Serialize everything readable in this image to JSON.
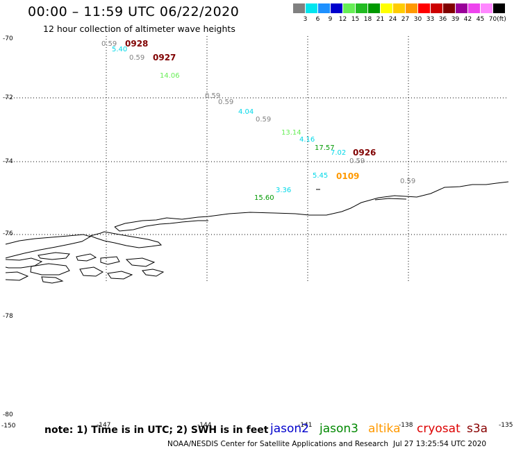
{
  "header": {
    "title": "00:00 – 11:59 UTC 06/22/2020",
    "subtitle": "12 hour collection of altimeter wave heights"
  },
  "legend": {
    "unit": "(ft)",
    "bins": [
      {
        "value": "3",
        "color": "#808080"
      },
      {
        "value": "6",
        "color": "#00e5ee"
      },
      {
        "value": "9",
        "color": "#1e90ff"
      },
      {
        "value": "12",
        "color": "#0000cd"
      },
      {
        "value": "15",
        "color": "#66ee55"
      },
      {
        "value": "18",
        "color": "#22bb22"
      },
      {
        "value": "21",
        "color": "#009900"
      },
      {
        "value": "24",
        "color": "#ffff00"
      },
      {
        "value": "27",
        "color": "#ffcc00"
      },
      {
        "value": "30",
        "color": "#ff9900"
      },
      {
        "value": "33",
        "color": "#ff0000"
      },
      {
        "value": "36",
        "color": "#cc0000"
      },
      {
        "value": "39",
        "color": "#800000"
      },
      {
        "value": "42",
        "color": "#990099"
      },
      {
        "value": "45",
        "color": "#ee44ee"
      },
      {
        "value": "70",
        "color": "#ff88ff"
      },
      {
        "value": "",
        "color": "#000000"
      }
    ]
  },
  "axes": {
    "lat_labels": [
      "-70",
      "-72",
      "-74",
      "-76",
      "-78",
      "-80"
    ],
    "lon_labels": [
      "-150",
      "-147",
      "-144",
      "-141",
      "-138",
      "-135"
    ]
  },
  "observations": [
    {
      "text": "0.59",
      "color": "#808080"
    },
    {
      "text": "5.40",
      "color": "#00d8e8"
    },
    {
      "text": "0.59",
      "color": "#808080"
    },
    {
      "text": "14.06",
      "color": "#66ee55"
    },
    {
      "text": "0.59",
      "color": "#808080"
    },
    {
      "text": "0.59",
      "color": "#808080"
    },
    {
      "text": "4.04",
      "color": "#00d8e8"
    },
    {
      "text": "0.59",
      "color": "#808080"
    },
    {
      "text": "13.14",
      "color": "#66ee55"
    },
    {
      "text": "4.16",
      "color": "#00d8e8"
    },
    {
      "text": "17.57",
      "color": "#009900"
    },
    {
      "text": "7.02",
      "color": "#00d8e8"
    },
    {
      "text": "0.59",
      "color": "#808080"
    },
    {
      "text": "5.45",
      "color": "#00d8e8"
    },
    {
      "text": "3.36",
      "color": "#00d8e8"
    },
    {
      "text": "15.60",
      "color": "#009900"
    },
    {
      "text": "0.59",
      "color": "#808080"
    }
  ],
  "pass_times": [
    {
      "text": "0928",
      "color": "#800000"
    },
    {
      "text": "0927",
      "color": "#800000"
    },
    {
      "text": "0926",
      "color": "#800000"
    },
    {
      "text": "0109",
      "color": "#ff9900"
    }
  ],
  "footer": {
    "note": "note: 1) Time is in UTC; 2) SWH is in feet",
    "missions": [
      {
        "name": "jason2",
        "color": "#0000cc"
      },
      {
        "name": "jason3",
        "color": "#008800"
      },
      {
        "name": "altika",
        "color": "#ff9900"
      },
      {
        "name": "cryosat",
        "color": "#dd0000"
      },
      {
        "name": "s3a",
        "color": "#880000"
      }
    ],
    "credit": "NOAA/NESDIS Center for Satellite Applications and Research",
    "timestamp": "Jul 27 13:25:54 UTC 2020"
  }
}
